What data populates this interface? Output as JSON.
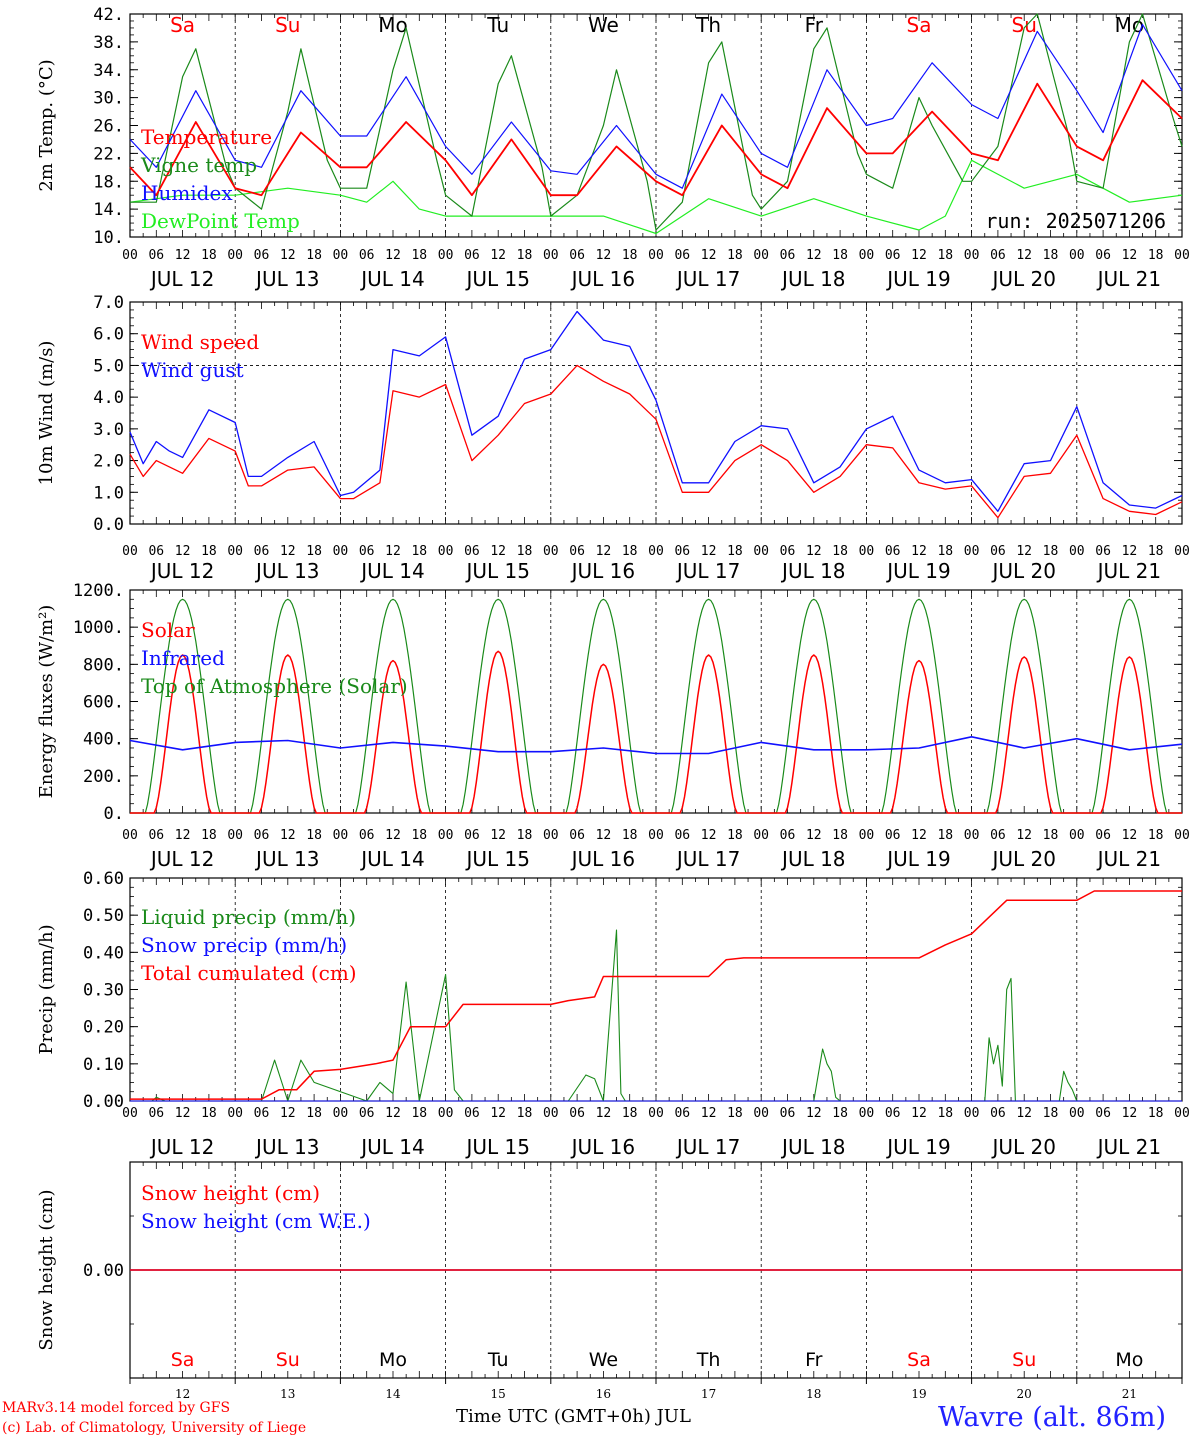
{
  "colors": {
    "red": "#ff0000",
    "green": "#1a8a1a",
    "blue": "#1010ff",
    "lime": "#22ee22",
    "black": "#000000"
  },
  "days": {
    "abbrev": [
      "Sa",
      "Su",
      "Mo",
      "Tu",
      "We",
      "Th",
      "Fr",
      "Sa",
      "Su",
      "Mo"
    ],
    "abbrev_colors": [
      "red",
      "red",
      "black",
      "black",
      "black",
      "black",
      "black",
      "red",
      "red",
      "black"
    ],
    "dates": [
      "JUL 12",
      "JUL 13",
      "JUL 14",
      "JUL 15",
      "JUL 16",
      "JUL 17",
      "JUL 18",
      "JUL 19",
      "JUL 20",
      "JUL 21"
    ],
    "numbers": [
      "12",
      "13",
      "14",
      "15",
      "16",
      "17",
      "18",
      "19",
      "20",
      "21"
    ],
    "hour_ticks": [
      "00",
      "06",
      "12",
      "18"
    ],
    "final_tick": "00"
  },
  "chart_data": [
    {
      "type": "line",
      "ylabel": "2m Temp. (°C)",
      "ylim": [
        10,
        42
      ],
      "yticks": [
        "10.",
        "14.",
        "18.",
        "22.",
        "26.",
        "30.",
        "34.",
        "38.",
        "42."
      ],
      "annotation": "run: 2025071206",
      "x_unit": "hours since JUL 12 00 UTC",
      "series": [
        {
          "name": "Temperature",
          "color": "red",
          "x": [
            0,
            6,
            15,
            24,
            30,
            39,
            48,
            54,
            63,
            72,
            78,
            87,
            96,
            102,
            111,
            120,
            126,
            135,
            144,
            150,
            159,
            168,
            174,
            183,
            192,
            198,
            207,
            216,
            222,
            231,
            240
          ],
          "y": [
            20,
            16,
            26.5,
            17,
            16,
            25,
            20,
            20,
            26.5,
            21,
            16,
            24,
            16,
            16,
            23,
            18,
            16,
            26,
            19,
            17,
            28.5,
            22,
            22,
            28,
            22,
            21,
            32,
            23,
            21,
            32.5,
            27
          ]
        },
        {
          "name": "Vigne temp",
          "color": "green",
          "x": [
            0,
            6,
            12,
            15,
            22,
            24,
            30,
            36,
            39,
            45,
            48,
            54,
            60,
            63,
            70,
            72,
            78,
            84,
            87,
            94,
            96,
            102,
            108,
            111,
            118,
            120,
            126,
            132,
            135,
            142,
            144,
            150,
            156,
            159,
            166,
            168,
            174,
            180,
            183,
            190,
            192,
            198,
            204,
            207,
            214,
            216,
            222,
            228,
            231,
            238,
            240
          ],
          "y": [
            15,
            15,
            33,
            37,
            20,
            17,
            14,
            28,
            37,
            21,
            17,
            17,
            34,
            40,
            21,
            16,
            13,
            32,
            36,
            20,
            13,
            16,
            26,
            34,
            18,
            11,
            15,
            35,
            38,
            16,
            14,
            18,
            37,
            40,
            22,
            19,
            17,
            30,
            26,
            18,
            18,
            23,
            40,
            42,
            25,
            18,
            17,
            38,
            42,
            27,
            23
          ]
        },
        {
          "name": "Humidex",
          "color": "blue",
          "x": [
            0,
            6,
            15,
            24,
            30,
            39,
            48,
            54,
            63,
            72,
            78,
            87,
            96,
            102,
            111,
            120,
            126,
            135,
            144,
            150,
            159,
            168,
            174,
            183,
            192,
            198,
            207,
            216,
            222,
            231,
            240
          ],
          "y": [
            24,
            20,
            31,
            21,
            20,
            31,
            24.5,
            24.5,
            33,
            23,
            19,
            26.5,
            19.5,
            19,
            26,
            19,
            17,
            30.5,
            22,
            20,
            34,
            26,
            27,
            35,
            29,
            27,
            39.5,
            31,
            25,
            40.5,
            31
          ]
        },
        {
          "name": "DewPoint Temp",
          "color": "lime",
          "x": [
            0,
            12,
            24,
            36,
            48,
            54,
            60,
            66,
            72,
            84,
            96,
            108,
            120,
            132,
            144,
            156,
            168,
            180,
            186,
            192,
            204,
            216,
            228,
            240
          ],
          "y": [
            15,
            16,
            16,
            17,
            16,
            15,
            18,
            14,
            13,
            13,
            13,
            13,
            10.5,
            15.5,
            13,
            15.5,
            13,
            11,
            13,
            21,
            17,
            19,
            15,
            16
          ]
        }
      ]
    },
    {
      "type": "line",
      "ylabel": "10m Wind (m/s)",
      "ylim": [
        0,
        7
      ],
      "yticks": [
        "0.0",
        "1.0",
        "2.0",
        "3.0",
        "4.0",
        "5.0",
        "6.0",
        "7.0"
      ],
      "reference_line": 5,
      "x_unit": "hours since JUL 12 00 UTC",
      "series": [
        {
          "name": "Wind speed",
          "color": "red",
          "x": [
            0,
            3,
            6,
            9,
            12,
            18,
            24,
            27,
            30,
            36,
            42,
            48,
            51,
            57,
            60,
            66,
            72,
            78,
            84,
            90,
            96,
            102,
            108,
            114,
            120,
            126,
            132,
            138,
            144,
            150,
            156,
            162,
            168,
            174,
            180,
            186,
            192,
            198,
            204,
            210,
            216,
            222,
            228,
            234,
            240
          ],
          "y": [
            2.2,
            1.5,
            2.0,
            1.8,
            1.6,
            2.7,
            2.3,
            1.2,
            1.2,
            1.7,
            1.8,
            0.8,
            0.8,
            1.3,
            4.2,
            4.0,
            4.4,
            2.0,
            2.8,
            3.8,
            4.1,
            5.0,
            4.5,
            4.1,
            3.3,
            1.0,
            1.0,
            2.0,
            2.5,
            2.0,
            1.0,
            1.5,
            2.5,
            2.4,
            1.3,
            1.1,
            1.2,
            0.2,
            1.5,
            1.6,
            2.8,
            0.8,
            0.4,
            0.3,
            0.7
          ]
        },
        {
          "name": "Wind gust",
          "color": "blue",
          "x": [
            0,
            3,
            6,
            9,
            12,
            18,
            24,
            27,
            30,
            36,
            42,
            48,
            51,
            57,
            60,
            66,
            72,
            78,
            84,
            90,
            96,
            102,
            108,
            114,
            120,
            126,
            132,
            138,
            144,
            150,
            156,
            162,
            168,
            174,
            180,
            186,
            192,
            198,
            204,
            210,
            216,
            222,
            228,
            234,
            240
          ],
          "y": [
            2.9,
            1.9,
            2.6,
            2.3,
            2.1,
            3.6,
            3.2,
            1.5,
            1.5,
            2.1,
            2.6,
            0.9,
            1.0,
            1.7,
            5.5,
            5.3,
            5.9,
            2.8,
            3.4,
            5.2,
            5.5,
            6.7,
            5.8,
            5.6,
            3.9,
            1.3,
            1.3,
            2.6,
            3.1,
            3.0,
            1.3,
            1.8,
            3.0,
            3.4,
            1.7,
            1.3,
            1.4,
            0.4,
            1.9,
            2.0,
            3.7,
            1.3,
            0.6,
            0.5,
            0.9
          ]
        }
      ]
    },
    {
      "type": "line",
      "ylabel": "Energy fluxes (W/m²)",
      "ylim": [
        0,
        1200
      ],
      "yticks": [
        "0.",
        "200.",
        "400.",
        "600.",
        "800.",
        "1000.",
        "1200."
      ],
      "x_unit": "hours since JUL 12 00 UTC",
      "solar_peaks": [
        850,
        850,
        820,
        870,
        800,
        850,
        850,
        820,
        840,
        840
      ],
      "toa_peak": 1150,
      "series": [
        {
          "name": "Solar",
          "color": "red"
        },
        {
          "name": "Infrared",
          "color": "blue",
          "x": [
            0,
            12,
            24,
            36,
            48,
            60,
            72,
            84,
            96,
            108,
            120,
            132,
            144,
            156,
            168,
            180,
            192,
            204,
            216,
            228,
            240
          ],
          "y": [
            390,
            340,
            380,
            390,
            350,
            380,
            360,
            330,
            330,
            350,
            320,
            320,
            380,
            340,
            340,
            350,
            410,
            350,
            400,
            340,
            370
          ]
        },
        {
          "name": "Top of Atmosphere (Solar)",
          "color": "green"
        }
      ]
    },
    {
      "type": "line",
      "ylabel": "Precip (mm/h)",
      "ylim": [
        0,
        0.6
      ],
      "yticks": [
        "0.00",
        "0.10",
        "0.20",
        "0.30",
        "0.40",
        "0.50",
        "0.60"
      ],
      "x_unit": "hours since JUL 12 00 UTC",
      "series": [
        {
          "name": "Liquid precip (mm/h)",
          "color": "green",
          "x": [
            0,
            5,
            6,
            8,
            30,
            33,
            36,
            39,
            42,
            54,
            57,
            60,
            63,
            66,
            72,
            74,
            76,
            78,
            100,
            104,
            106,
            108,
            111,
            112,
            113,
            114,
            156,
            158,
            159,
            160,
            161,
            162,
            195,
            196,
            197,
            198,
            199,
            200,
            201,
            202,
            212,
            213,
            214,
            215,
            216
          ],
          "y": [
            0,
            0,
            0.01,
            0,
            0,
            0.11,
            0,
            0.11,
            0.05,
            0,
            0.05,
            0.02,
            0.32,
            0,
            0.34,
            0.03,
            0,
            0,
            0,
            0.07,
            0.06,
            0,
            0.46,
            0.02,
            0,
            0,
            0,
            0.14,
            0.1,
            0.08,
            0.01,
            0,
            0,
            0.17,
            0.1,
            0.15,
            0.04,
            0.3,
            0.33,
            0,
            0,
            0.08,
            0.05,
            0.03,
            0
          ]
        },
        {
          "name": "Snow precip (mm/h)",
          "color": "blue",
          "x": [
            0,
            240
          ],
          "y": [
            0,
            0
          ]
        },
        {
          "name": "Total cumulated (cm)",
          "color": "red",
          "x": [
            0,
            30,
            34,
            38,
            42,
            48,
            56,
            60,
            64,
            72,
            76,
            96,
            100,
            106,
            108,
            132,
            136,
            140,
            168,
            180,
            186,
            192,
            200,
            216,
            220,
            240
          ],
          "y": [
            0.005,
            0.005,
            0.03,
            0.03,
            0.08,
            0.085,
            0.1,
            0.11,
            0.2,
            0.2,
            0.26,
            0.26,
            0.27,
            0.28,
            0.335,
            0.335,
            0.38,
            0.385,
            0.385,
            0.385,
            0.42,
            0.45,
            0.54,
            0.54,
            0.565,
            0.565
          ]
        }
      ]
    },
    {
      "type": "line",
      "ylabel": "Snow height (cm)",
      "ylim": [
        -1,
        1
      ],
      "yticks": [
        "0.00"
      ],
      "xlabel": "Time UTC (GMT+0h) JUL",
      "series": [
        {
          "name": "Snow height (cm)",
          "color": "red",
          "x": [
            0,
            240
          ],
          "y": [
            0,
            0
          ]
        },
        {
          "name": "Snow height (cm W.E.)",
          "color": "blue",
          "x": [
            0,
            240
          ],
          "y": [
            0,
            0
          ]
        }
      ]
    }
  ],
  "footer": {
    "model_line": "MARv3.14 model forced by GFS",
    "copyright_line": "(c) Lab. of Climatology, University of Liege",
    "xlabel": "Time UTC (GMT+0h) JUL",
    "station": "Wavre (alt. 86m)"
  }
}
